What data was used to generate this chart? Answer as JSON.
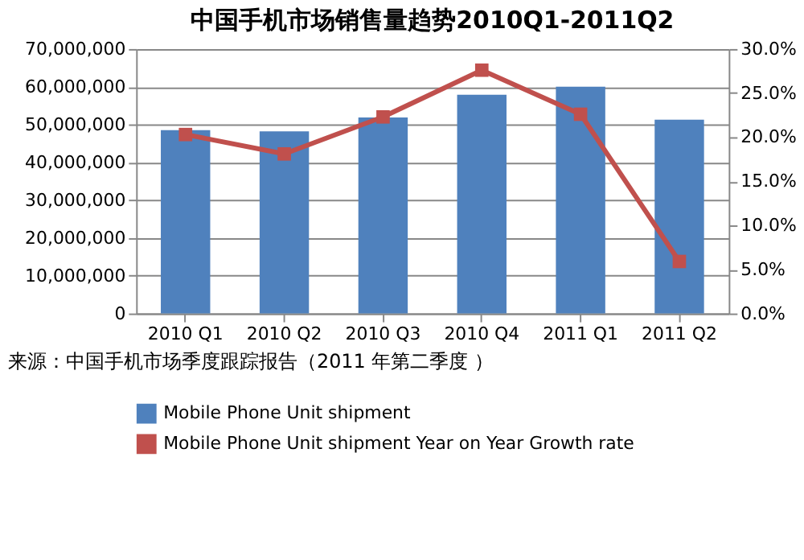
{
  "chart_data": {
    "type": "bar",
    "title": "中国手机市场销售量趋势2010Q1-2011Q2",
    "categories": [
      "2010 Q1",
      "2010 Q2",
      "2010 Q3",
      "2010 Q4",
      "2011 Q1",
      "2011 Q2"
    ],
    "series": [
      {
        "name": "Mobile Phone Unit shipment",
        "color": "#4f81bd",
        "values": [
          48500000,
          48200000,
          51900000,
          57900000,
          60000000,
          51300000
        ]
      },
      {
        "name": "Mobile Phone Unit shipment Year on Year  Growth rate",
        "type": "line",
        "axis": "y2",
        "color": "#c0504d",
        "marker": "square",
        "values": [
          20.3,
          18.1,
          22.3,
          27.6,
          22.6,
          5.9
        ]
      }
    ],
    "ylim": [
      0,
      70000000
    ],
    "yticks": [
      {
        "value": 0,
        "label": "0"
      },
      {
        "value": 10000000,
        "label": "10,000,000"
      },
      {
        "value": 20000000,
        "label": "20,000,000"
      },
      {
        "value": 30000000,
        "label": "30,000,000"
      },
      {
        "value": 40000000,
        "label": "40,000,000"
      },
      {
        "value": 50000000,
        "label": "50,000,000"
      },
      {
        "value": 60000000,
        "label": "60,000,000"
      },
      {
        "value": 70000000,
        "label": "70,000,000"
      }
    ],
    "y2lim": [
      0,
      30
    ],
    "y2ticks": [
      {
        "value": 0,
        "label": "0.0%"
      },
      {
        "value": 5,
        "label": "5.0%"
      },
      {
        "value": 10,
        "label": "10.0%"
      },
      {
        "value": 15,
        "label": "15.0%"
      },
      {
        "value": 20,
        "label": "20.0%"
      },
      {
        "value": 25,
        "label": "25.0%"
      },
      {
        "value": 30,
        "label": "30.0%"
      }
    ],
    "grid": "y",
    "legend": "bottom left",
    "annotations": [
      "来源：中国手机市场季度跟踪报告（2011 年第二季度 ）"
    ]
  }
}
